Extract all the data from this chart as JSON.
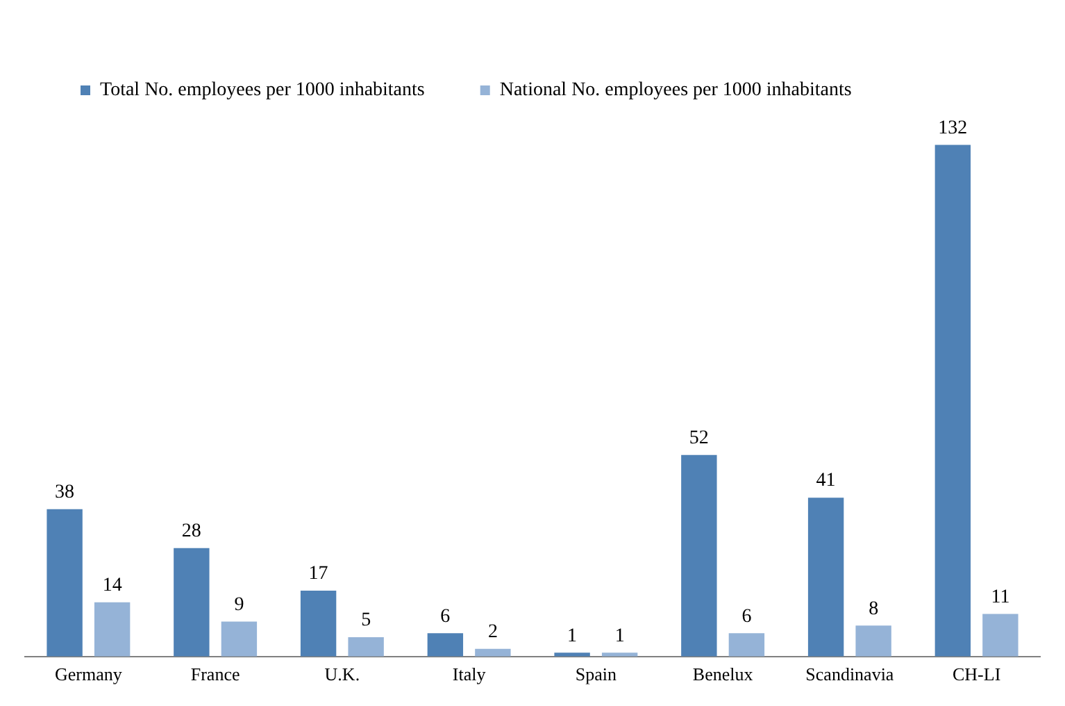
{
  "chart_data": {
    "type": "bar",
    "categories": [
      "Germany",
      "France",
      "U.K.",
      "Italy",
      "Spain",
      "Benelux",
      "Scandinavia",
      "CH-LI"
    ],
    "series": [
      {
        "name": "Total No. employees per 1000 inhabitants",
        "color": "#4f81b5",
        "values": [
          38,
          28,
          17,
          6,
          1,
          52,
          41,
          132
        ]
      },
      {
        "name": "National No. employees per 1000 inhabitants",
        "color": "#95b3d7",
        "values": [
          14,
          9,
          5,
          2,
          1,
          6,
          8,
          11
        ]
      }
    ],
    "data_labels": true,
    "legend": "top left",
    "grid": false
  }
}
